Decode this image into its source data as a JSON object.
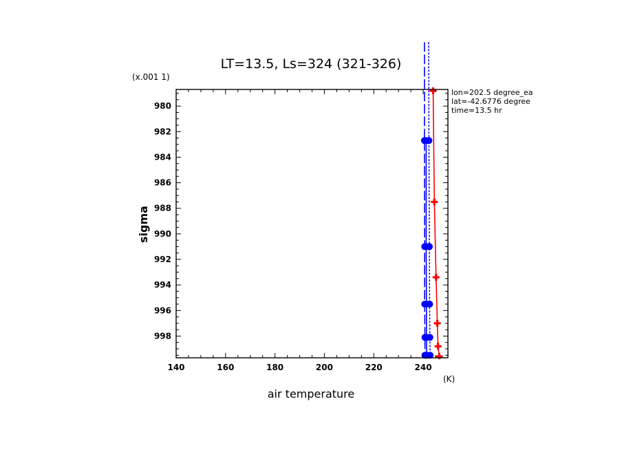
{
  "chart_data": {
    "type": "line",
    "title": "LT=13.5, Ls=324 (321-326)",
    "xlabel": "air temperature",
    "xunit": "(K)",
    "ylabel": "sigma",
    "yscale_label": "(x.001 1)",
    "xlim": [
      140,
      250
    ],
    "ylim": [
      978.7,
      999.7
    ],
    "y_inverted": true,
    "x_ticks": [
      140,
      160,
      180,
      200,
      220,
      240
    ],
    "y_ticks": [
      980,
      982,
      984,
      986,
      988,
      990,
      992,
      994,
      996,
      998
    ],
    "annotations": [
      "lon=202.5 degree_ea",
      "lat=-42.6776 degree",
      "time=13.5 hr"
    ],
    "colors": {
      "red": "#ff0000",
      "blue": "#0000ff"
    },
    "series": [
      {
        "color": "#ff0000",
        "style": "solid",
        "marker": "cross",
        "points": [
          {
            "x": 244.0,
            "y": 978.8
          },
          {
            "x": 244.5,
            "y": 987.5
          },
          {
            "x": 245.2,
            "y": 993.4
          },
          {
            "x": 245.7,
            "y": 997.0
          },
          {
            "x": 246.0,
            "y": 998.8
          },
          {
            "x": 246.5,
            "y": 999.6
          }
        ]
      },
      {
        "color": "#0000ff",
        "style": "solid",
        "marker": "circle",
        "points": [
          {
            "x": 241.2,
            "y": 982.7
          },
          {
            "x": 241.2,
            "y": 991.0
          },
          {
            "x": 241.3,
            "y": 995.5
          },
          {
            "x": 241.3,
            "y": 998.1
          },
          {
            "x": 241.4,
            "y": 999.5
          }
        ]
      },
      {
        "color": "#0000ff",
        "style": "longdash",
        "marker": "circle",
        "points": [
          {
            "x": 240.5,
            "y": 975.0
          },
          {
            "x": 240.5,
            "y": 982.7
          },
          {
            "x": 240.6,
            "y": 991.0
          },
          {
            "x": 240.6,
            "y": 995.5
          },
          {
            "x": 240.7,
            "y": 998.1
          },
          {
            "x": 240.7,
            "y": 999.5
          }
        ]
      },
      {
        "color": "#0000ff",
        "style": "dotted",
        "marker": "circle",
        "points": [
          {
            "x": 242.2,
            "y": 975.0
          },
          {
            "x": 242.3,
            "y": 982.7
          },
          {
            "x": 242.5,
            "y": 991.0
          },
          {
            "x": 242.6,
            "y": 995.5
          },
          {
            "x": 242.7,
            "y": 998.1
          },
          {
            "x": 242.8,
            "y": 999.5
          }
        ]
      }
    ]
  }
}
